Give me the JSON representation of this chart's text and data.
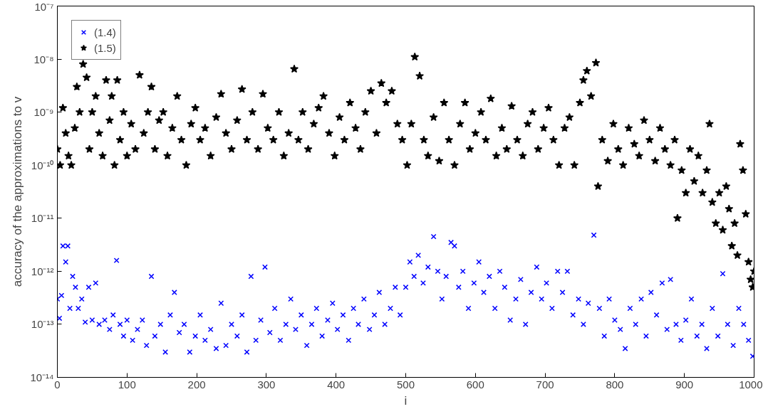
{
  "chart_data": {
    "type": "scatter",
    "xlabel": "i",
    "ylabel": "accuracy of the approximations to v",
    "log": "y",
    "grid": false,
    "legend": "top left",
    "xlim": [
      0,
      1000
    ],
    "xticks": [
      0,
      100,
      200,
      300,
      400,
      500,
      600,
      700,
      800,
      900,
      1000
    ],
    "ylim": [
      1e-14,
      1e-07
    ],
    "yticks": [
      {
        "value": 1e-14,
        "label": "10⁻¹⁴"
      },
      {
        "value": 1e-13,
        "label": "10⁻¹³"
      },
      {
        "value": 1e-12,
        "label": "10⁻¹²"
      },
      {
        "value": 1e-11,
        "label": "10⁻¹¹"
      },
      {
        "value": 1e-10,
        "label": "10⁻¹⁰"
      },
      {
        "value": 1e-09,
        "label": "10⁻⁹"
      },
      {
        "value": 1e-08,
        "label": "10⁻⁸"
      },
      {
        "value": 1e-07,
        "label": "10⁻⁷"
      }
    ],
    "series": [
      {
        "name": "(1.4)",
        "color": "#0000ff",
        "marker": "cross",
        "x": [
          0,
          3,
          6,
          8,
          12,
          15,
          18,
          22,
          26,
          30,
          35,
          40,
          45,
          50,
          55,
          60,
          68,
          75,
          80,
          85,
          90,
          95,
          100,
          108,
          115,
          122,
          128,
          135,
          140,
          148,
          155,
          162,
          168,
          175,
          182,
          190,
          198,
          205,
          212,
          220,
          228,
          235,
          242,
          250,
          258,
          265,
          272,
          278,
          285,
          292,
          298,
          305,
          312,
          320,
          328,
          335,
          342,
          350,
          358,
          365,
          372,
          380,
          388,
          395,
          402,
          410,
          418,
          425,
          432,
          440,
          448,
          455,
          462,
          470,
          478,
          485,
          492,
          500,
          506,
          512,
          518,
          525,
          532,
          540,
          546,
          552,
          558,
          565,
          570,
          576,
          582,
          590,
          598,
          605,
          612,
          620,
          628,
          635,
          642,
          650,
          658,
          665,
          672,
          680,
          688,
          695,
          702,
          710,
          718,
          725,
          732,
          740,
          748,
          755,
          762,
          770,
          778,
          785,
          792,
          800,
          808,
          815,
          822,
          830,
          838,
          845,
          852,
          860,
          868,
          875,
          880,
          888,
          895,
          902,
          910,
          918,
          925,
          932,
          940,
          948,
          955,
          962,
          970,
          978,
          985,
          992,
          998
        ],
        "values": [
          3e-13,
          1.3e-13,
          3.5e-13,
          3e-12,
          1.5e-12,
          3e-12,
          2e-13,
          8e-13,
          5e-13,
          2e-13,
          3e-13,
          1.1e-13,
          5e-13,
          1.2e-13,
          6e-13,
          1e-13,
          1.2e-13,
          8e-14,
          1.5e-13,
          1.6e-12,
          1e-13,
          6e-14,
          1.2e-13,
          5e-14,
          8e-14,
          1.2e-13,
          4e-14,
          8e-13,
          6e-14,
          1e-13,
          3e-14,
          1.5e-13,
          4e-13,
          7e-14,
          1e-13,
          3e-14,
          6e-14,
          1.5e-13,
          5e-14,
          8e-14,
          3.5e-14,
          2.5e-13,
          4e-14,
          1e-13,
          6e-14,
          1.5e-13,
          3e-14,
          8e-13,
          5e-14,
          1.2e-13,
          1.2e-12,
          7e-14,
          2e-13,
          5e-14,
          1e-13,
          3e-13,
          8e-14,
          1.5e-13,
          4e-14,
          1e-13,
          2e-13,
          6e-14,
          1.2e-13,
          2.5e-13,
          8e-14,
          1.5e-13,
          5e-14,
          2e-13,
          1e-13,
          3e-13,
          8e-14,
          1.5e-13,
          4e-13,
          1e-13,
          2e-13,
          5e-13,
          1.5e-13,
          5e-13,
          1.5e-12,
          8e-13,
          2e-12,
          6e-13,
          1.2e-12,
          4.5e-12,
          1e-12,
          3e-13,
          8e-13,
          3.5e-12,
          3e-12,
          5e-13,
          1e-12,
          2e-13,
          6e-13,
          1.5e-12,
          4e-13,
          8e-13,
          2e-13,
          1e-12,
          5e-13,
          1.2e-13,
          3e-13,
          7e-13,
          1e-13,
          4e-13,
          1.2e-12,
          3e-13,
          6e-13,
          2e-13,
          1e-12,
          4e-13,
          1e-12,
          1.5e-13,
          3e-13,
          1e-13,
          2.5e-13,
          4.8e-12,
          2e-13,
          6e-14,
          3e-13,
          1.2e-13,
          8e-14,
          3.5e-14,
          2e-13,
          1e-13,
          3e-13,
          6e-14,
          4e-13,
          1.5e-13,
          6e-13,
          8e-14,
          7e-13,
          1e-13,
          5e-14,
          1.2e-13,
          3e-13,
          6e-14,
          1e-13,
          3.5e-14,
          2e-13,
          6e-14,
          9e-13,
          1e-13,
          4e-14,
          2e-13,
          1e-13,
          5e-14,
          2.5e-14
        ]
      },
      {
        "name": "(1.5)",
        "color": "#000000",
        "marker": "star",
        "x": [
          0,
          4,
          8,
          12,
          16,
          20,
          25,
          28,
          32,
          37,
          42,
          46,
          50,
          55,
          60,
          65,
          70,
          75,
          78,
          82,
          86,
          90,
          95,
          100,
          106,
          112,
          118,
          124,
          130,
          135,
          140,
          146,
          152,
          158,
          165,
          172,
          178,
          185,
          192,
          198,
          205,
          212,
          220,
          228,
          235,
          242,
          250,
          258,
          265,
          272,
          280,
          288,
          295,
          302,
          310,
          318,
          325,
          332,
          340,
          346,
          352,
          360,
          368,
          375,
          382,
          390,
          398,
          405,
          412,
          420,
          428,
          435,
          442,
          450,
          458,
          465,
          472,
          480,
          488,
          495,
          502,
          508,
          513,
          520,
          526,
          532,
          540,
          548,
          555,
          562,
          570,
          578,
          585,
          592,
          600,
          608,
          615,
          622,
          630,
          638,
          645,
          652,
          660,
          668,
          675,
          682,
          690,
          698,
          705,
          712,
          720,
          728,
          735,
          742,
          750,
          755,
          760,
          766,
          773,
          776,
          782,
          790,
          798,
          805,
          812,
          820,
          828,
          835,
          842,
          850,
          858,
          865,
          872,
          880,
          886,
          890,
          896,
          902,
          908,
          914,
          920,
          926,
          932,
          936,
          940,
          945,
          950,
          955,
          960,
          964,
          968,
          972,
          976,
          980,
          984,
          988,
          992,
          995,
          998,
          1000
        ],
        "values": [
          2e-10,
          1e-10,
          1.2e-09,
          4e-10,
          1.5e-10,
          1e-10,
          5e-10,
          3e-09,
          1e-09,
          8e-09,
          4.5e-09,
          2e-10,
          1e-09,
          2e-09,
          4e-10,
          1.5e-10,
          4e-09,
          7e-10,
          2e-09,
          1e-10,
          4e-09,
          3e-10,
          1e-09,
          1.5e-10,
          6e-10,
          2e-10,
          5e-09,
          4e-10,
          1e-09,
          3e-09,
          2e-10,
          7e-10,
          1e-09,
          1.5e-10,
          5e-10,
          2e-09,
          3e-10,
          1e-10,
          6e-10,
          1.2e-09,
          3e-10,
          5e-10,
          1.5e-10,
          8e-10,
          2.2e-09,
          4e-10,
          2e-10,
          7e-10,
          2.7e-09,
          3e-10,
          1e-09,
          2e-10,
          2.2e-09,
          5e-10,
          3e-10,
          1e-09,
          1.5e-10,
          4e-10,
          6.5e-09,
          3e-10,
          1e-09,
          2e-10,
          6e-10,
          1.2e-09,
          2e-09,
          4e-10,
          1.5e-10,
          8e-10,
          3e-10,
          1.5e-09,
          5e-10,
          2e-10,
          1e-09,
          2.5e-09,
          4e-10,
          3.5e-09,
          1.5e-09,
          2.5e-09,
          6e-10,
          3e-10,
          1e-10,
          6e-10,
          1.1e-08,
          4.8e-09,
          3e-10,
          1.5e-10,
          8e-10,
          1.2e-10,
          1.5e-09,
          3e-10,
          1e-10,
          6e-10,
          1.5e-09,
          2e-10,
          4e-10,
          1e-09,
          3e-10,
          1.8e-09,
          1.5e-10,
          5e-10,
          2e-10,
          1.3e-09,
          3e-10,
          1.5e-10,
          6e-10,
          1e-09,
          2e-10,
          5e-10,
          1.2e-09,
          3e-10,
          1e-10,
          5e-10,
          8e-10,
          1e-10,
          1.5e-09,
          4e-09,
          6e-09,
          2e-09,
          8.5e-09,
          4e-11,
          3e-10,
          1.2e-10,
          6e-10,
          2e-10,
          1e-10,
          5e-10,
          2.5e-10,
          1.5e-10,
          7e-10,
          3e-10,
          1.2e-10,
          5e-10,
          2e-10,
          1e-10,
          3e-10,
          1e-11,
          8e-11,
          3e-11,
          2e-10,
          5e-11,
          1.5e-10,
          3e-11,
          8e-11,
          6e-10,
          2e-11,
          8e-12,
          3e-11,
          6e-12,
          4e-11,
          1.5e-11,
          3e-12,
          8e-12,
          2e-12,
          2.5e-10,
          8e-11,
          1.2e-11,
          1.5e-12,
          7e-13,
          5e-13,
          1e-12
        ]
      }
    ]
  }
}
